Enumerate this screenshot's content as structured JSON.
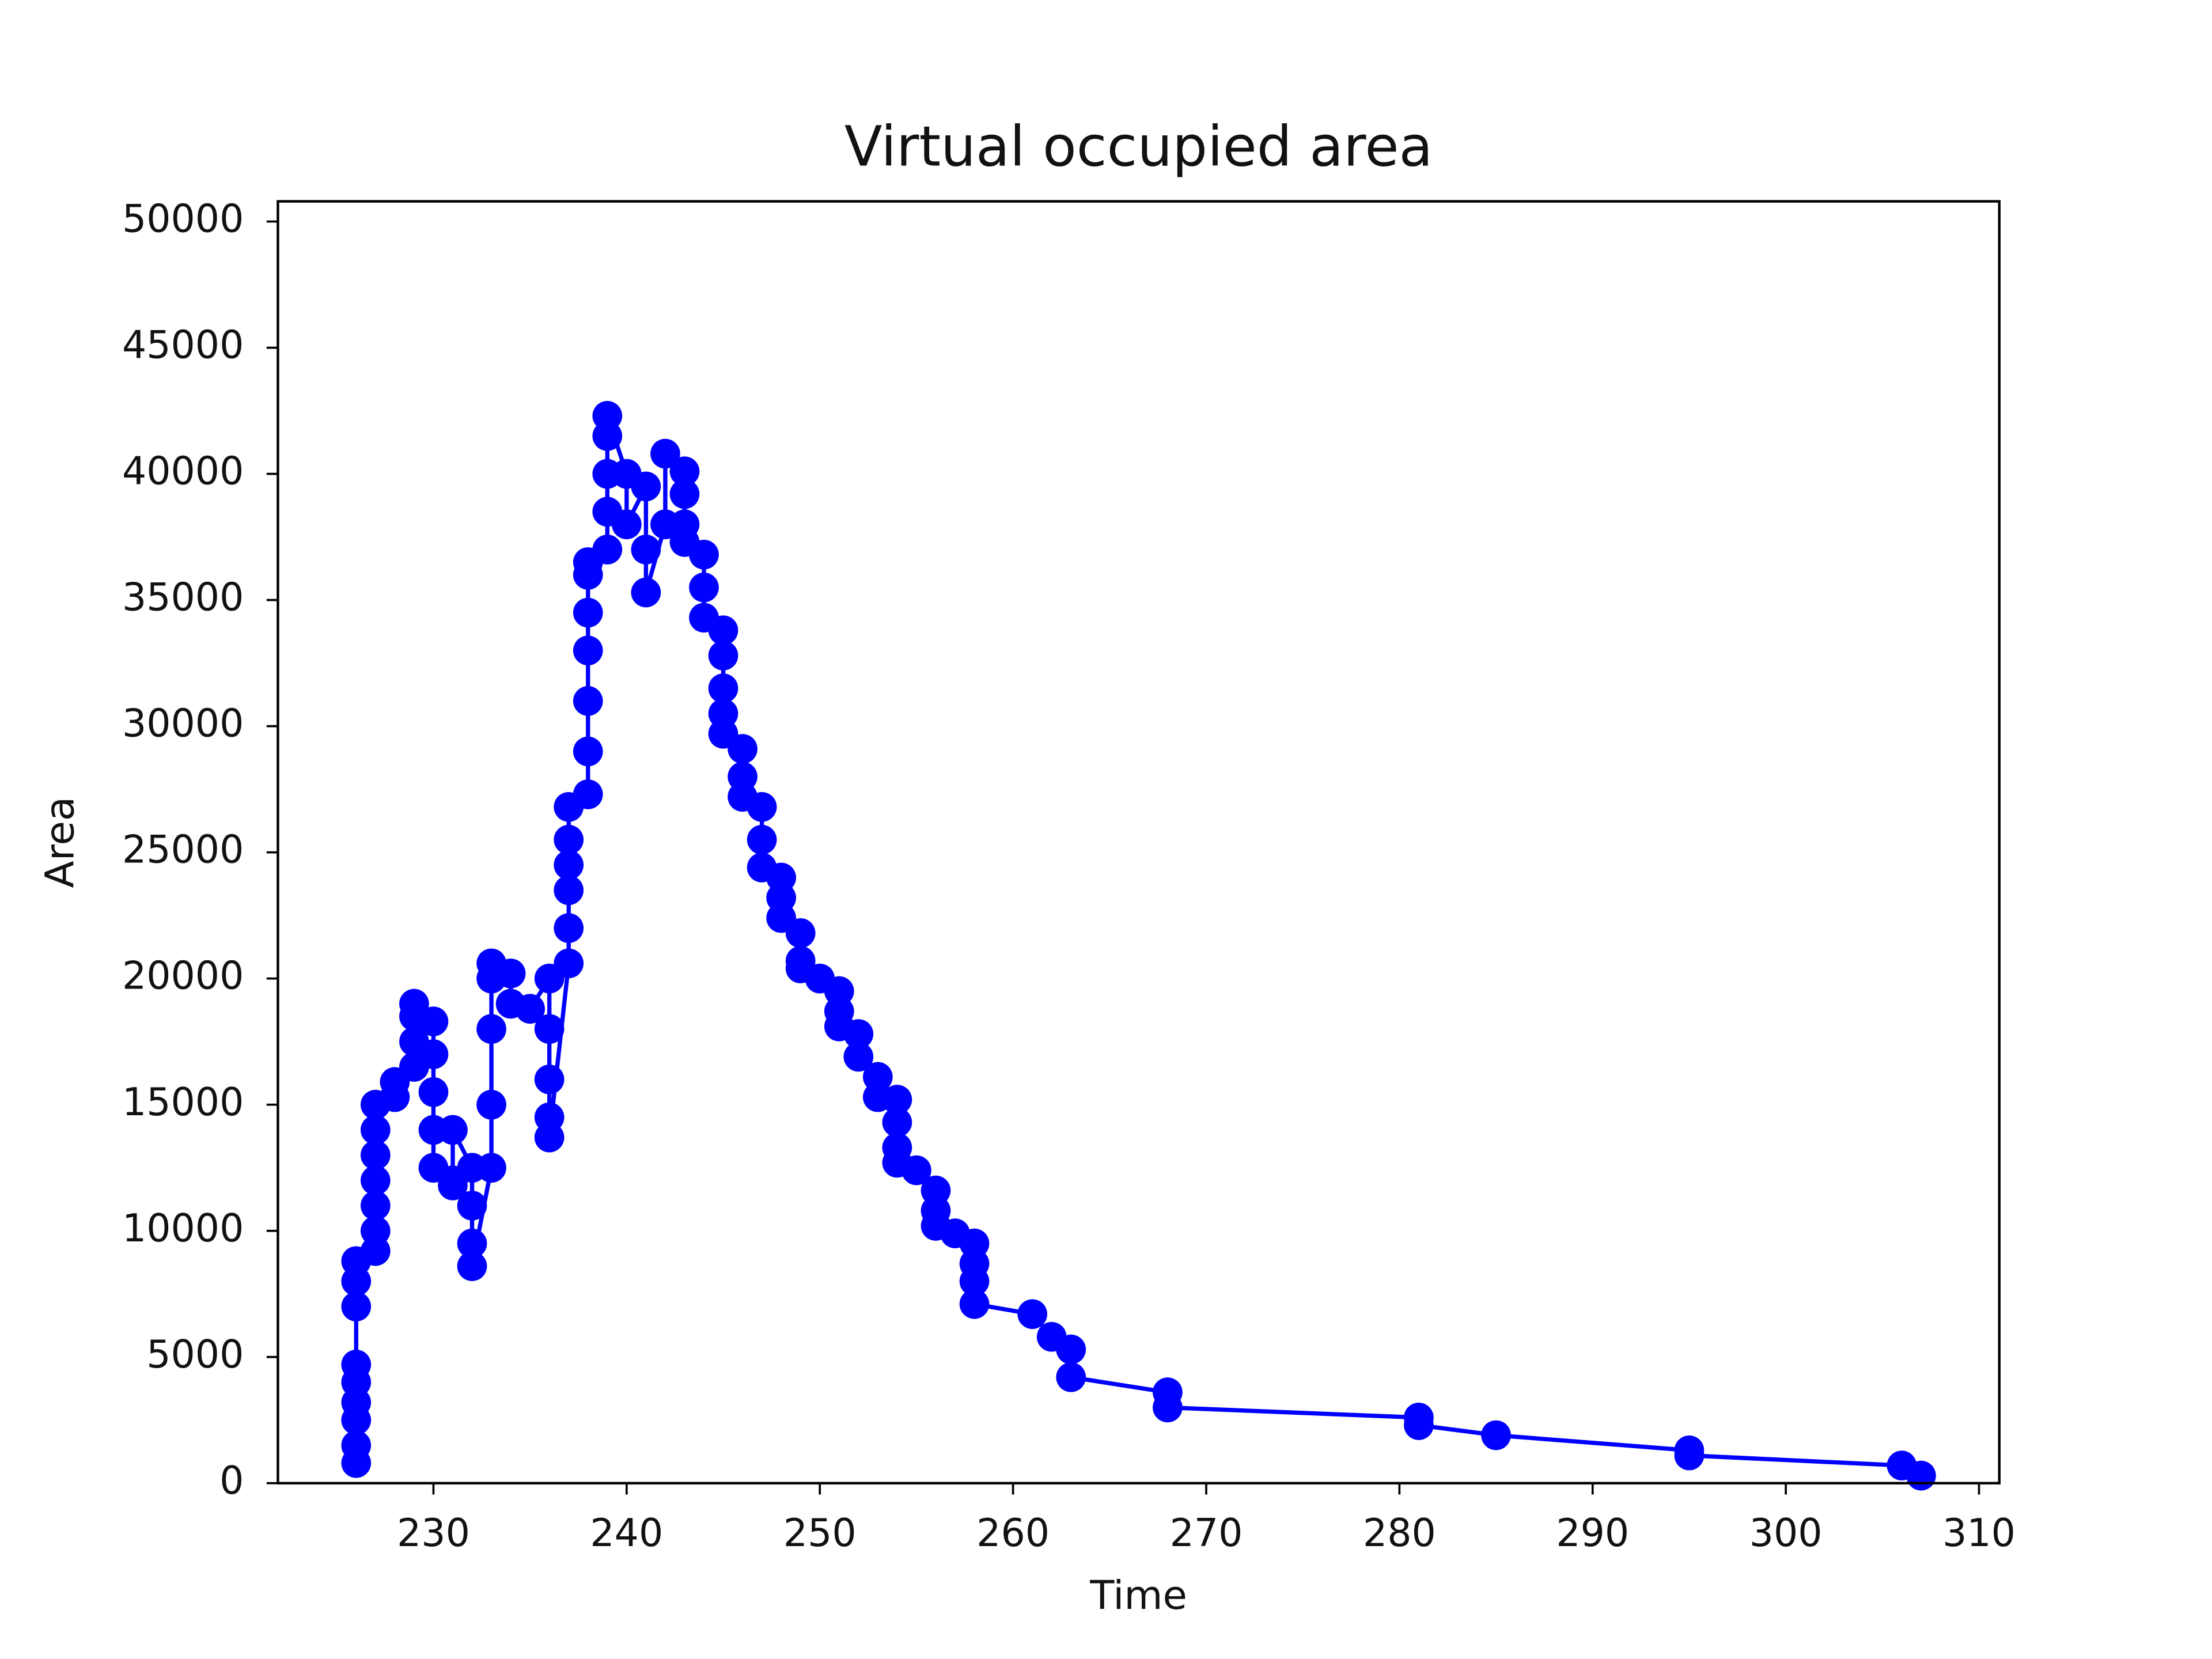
{
  "chart_data": {
    "type": "line",
    "title": "Virtual occupied area",
    "x_label": "Time",
    "y_label": "Area",
    "x": [
      226,
      226,
      226,
      226,
      226,
      226,
      226,
      226,
      226,
      227,
      227,
      227,
      227,
      227,
      227,
      227,
      228,
      228,
      229,
      229,
      229,
      229,
      230,
      230,
      230,
      230,
      230,
      231,
      231,
      231,
      232,
      232,
      232,
      232,
      233,
      233,
      233,
      233,
      233,
      234,
      234,
      235,
      236,
      236,
      236,
      236,
      236,
      237,
      237,
      237,
      237,
      237,
      237,
      238,
      238,
      238,
      238,
      238,
      238,
      238,
      239,
      239,
      239,
      239,
      239,
      240,
      240,
      241,
      241,
      241,
      242,
      242,
      243,
      243,
      243,
      243,
      244,
      244,
      244,
      245,
      245,
      245,
      245,
      245,
      246,
      246,
      246,
      247,
      247,
      247,
      248,
      248,
      248,
      249,
      249,
      249,
      250,
      251,
      251,
      251,
      252,
      252,
      253,
      253,
      254,
      254,
      254,
      254,
      255,
      256,
      256,
      256,
      257,
      258,
      258,
      258,
      258,
      261,
      262,
      263,
      263,
      268,
      268,
      281,
      281,
      285,
      295,
      295,
      306,
      307
    ],
    "series": [
      {
        "name": "Area",
        "color": "#0000ff",
        "values": [
          800,
          1500,
          2500,
          3200,
          4000,
          4700,
          7000,
          8000,
          8800,
          9200,
          10000,
          11000,
          12000,
          13000,
          14000,
          15000,
          15300,
          15900,
          16500,
          17500,
          18500,
          19000,
          18300,
          17000,
          15500,
          14000,
          12500,
          12000,
          11800,
          14000,
          12500,
          11000,
          9500,
          8600,
          12500,
          15000,
          18000,
          20000,
          20600,
          20200,
          19000,
          18800,
          20000,
          18000,
          16000,
          14500,
          13700,
          20600,
          22000,
          23500,
          24500,
          25500,
          26800,
          27300,
          29000,
          31000,
          33000,
          34500,
          36000,
          36500,
          37000,
          38500,
          40000,
          41500,
          42300,
          40000,
          38000,
          39500,
          37000,
          35300,
          38000,
          40800,
          40100,
          39200,
          38000,
          37300,
          36800,
          35500,
          34300,
          33800,
          32800,
          31500,
          30500,
          29700,
          29100,
          28000,
          27200,
          26800,
          25500,
          24400,
          24000,
          23200,
          22400,
          21800,
          20700,
          20400,
          20000,
          19500,
          18700,
          18100,
          17800,
          16900,
          16100,
          15300,
          15200,
          14300,
          13300,
          12700,
          12400,
          11600,
          10800,
          10200,
          9900,
          9500,
          8700,
          8000,
          7100,
          6700,
          5800,
          5300,
          4200,
          3600,
          3000,
          2600,
          2300,
          1900,
          1300,
          1100,
          700,
          300
        ]
      }
    ],
    "xlim": [
      221.95,
      311.05
    ],
    "ylim": [
      0,
      50800
    ],
    "xticks": [
      230,
      240,
      250,
      260,
      270,
      280,
      290,
      300,
      310
    ],
    "yticks": [
      0,
      5000,
      10000,
      15000,
      20000,
      25000,
      30000,
      35000,
      40000,
      45000,
      50000
    ],
    "grid": false
  }
}
